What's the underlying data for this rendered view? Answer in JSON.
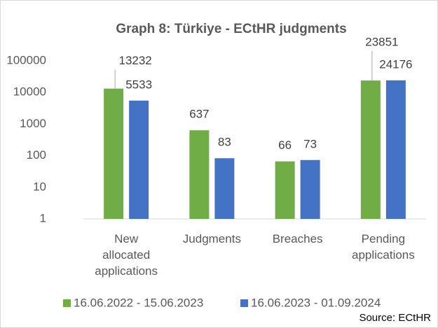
{
  "chart_data": {
    "type": "bar",
    "title": "Graph 8: Türkiye - ECtHR judgments",
    "categories": [
      "New allocated applications",
      "Judgments",
      "Breaches",
      "Pending applications"
    ],
    "series": [
      {
        "name": "16.06.2022 - 15.06.2023",
        "color": "#70ad47",
        "values": [
          13232,
          637,
          66,
          23851
        ]
      },
      {
        "name": "16.06.2023 - 01.09.2024",
        "color": "#4472c4",
        "values": [
          5533,
          83,
          73,
          24176
        ]
      }
    ],
    "ylim": [
      1,
      100000
    ],
    "yticks": [
      1,
      10,
      100,
      1000,
      10000,
      100000
    ],
    "log_scale": true,
    "grid": false,
    "legend": "bottom",
    "source": "Source: ECtHR"
  }
}
